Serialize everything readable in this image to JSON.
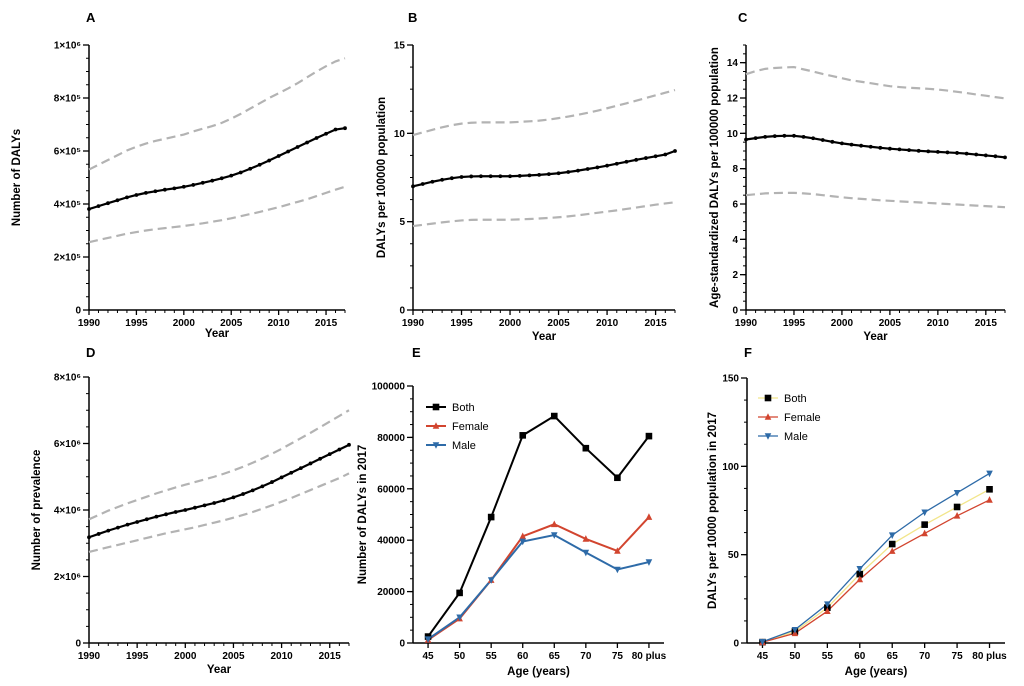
{
  "colors": {
    "axis": "#000000",
    "main_line": "#000000",
    "interval": "#b3b3b3",
    "both": "#000000",
    "female": "#d2452f",
    "male": "#2e6ba8",
    "both_f": "#f2e58a",
    "female_f": "#d2452f",
    "male_f": "#2e6ba8"
  },
  "chart_data": [
    {
      "id": "A",
      "type": "line",
      "letter": "A",
      "xlabel": "Year",
      "ylabel": "Number of DALYs",
      "xlim": [
        1990,
        2017
      ],
      "ylim": [
        0,
        1000000
      ],
      "xticks": [
        1990,
        1995,
        2000,
        2005,
        2010,
        2015
      ],
      "yticks": [
        {
          "value": 0,
          "label": "0"
        },
        {
          "value": 200000,
          "label": "2×10⁵"
        },
        {
          "value": 400000,
          "label": "4×10⁵"
        },
        {
          "value": 600000,
          "label": "6×10⁵"
        },
        {
          "value": 800000,
          "label": "8×10⁵"
        },
        {
          "value": 1000000,
          "label": "1×10⁶"
        }
      ],
      "years": [
        1990,
        1991,
        1992,
        1993,
        1994,
        1995,
        1996,
        1997,
        1998,
        1999,
        2000,
        2001,
        2002,
        2003,
        2004,
        2005,
        2006,
        2007,
        2008,
        2009,
        2010,
        2011,
        2012,
        2013,
        2014,
        2015,
        2016,
        2017
      ],
      "series": [
        {
          "name": "estimate",
          "values": [
            381000,
            392000,
            403000,
            414000,
            425000,
            434000,
            442000,
            448000,
            454000,
            459000,
            465000,
            472000,
            480000,
            488000,
            497000,
            507000,
            519000,
            533000,
            548000,
            564000,
            581000,
            598000,
            615000,
            632000,
            649000,
            665000,
            681000,
            686000
          ]
        },
        {
          "name": "upper",
          "values": [
            530000,
            548000,
            566000,
            584000,
            602000,
            616000,
            628000,
            638000,
            646000,
            654000,
            662000,
            674000,
            684000,
            694000,
            706000,
            722000,
            740000,
            760000,
            780000,
            800000,
            818000,
            836000,
            856000,
            878000,
            900000,
            920000,
            938000,
            950000
          ]
        },
        {
          "name": "lower",
          "values": [
            256000,
            264000,
            272000,
            280000,
            288000,
            294000,
            300000,
            305000,
            309000,
            313000,
            317000,
            322000,
            327000,
            333000,
            339000,
            346000,
            354000,
            362000,
            370000,
            379000,
            388000,
            398000,
            408000,
            418000,
            430000,
            442000,
            454000,
            465000
          ]
        }
      ]
    },
    {
      "id": "B",
      "type": "line",
      "letter": "B",
      "xlabel": "Year",
      "ylabel": "DALYs per 100000 population",
      "xlim": [
        1990,
        2017
      ],
      "ylim": [
        0,
        15
      ],
      "xticks": [
        1990,
        1995,
        2000,
        2005,
        2010,
        2015
      ],
      "yticks": [
        {
          "value": 0,
          "label": "0"
        },
        {
          "value": 5,
          "label": "5"
        },
        {
          "value": 10,
          "label": "10"
        },
        {
          "value": 15,
          "label": "15"
        }
      ],
      "years": [
        1990,
        1991,
        1992,
        1993,
        1994,
        1995,
        1996,
        1997,
        1998,
        1999,
        2000,
        2001,
        2002,
        2003,
        2004,
        2005,
        2006,
        2007,
        2008,
        2009,
        2010,
        2011,
        2012,
        2013,
        2014,
        2015,
        2016,
        2017
      ],
      "series": [
        {
          "name": "estimate",
          "values": [
            7.0,
            7.13,
            7.26,
            7.37,
            7.46,
            7.53,
            7.56,
            7.57,
            7.57,
            7.57,
            7.57,
            7.59,
            7.62,
            7.65,
            7.69,
            7.74,
            7.81,
            7.89,
            7.98,
            8.07,
            8.17,
            8.28,
            8.39,
            8.5,
            8.6,
            8.7,
            8.8,
            9.0
          ]
        },
        {
          "name": "upper",
          "values": [
            9.9,
            10.05,
            10.2,
            10.34,
            10.46,
            10.55,
            10.6,
            10.62,
            10.62,
            10.62,
            10.62,
            10.65,
            10.68,
            10.72,
            10.78,
            10.86,
            10.95,
            11.05,
            11.16,
            11.28,
            11.42,
            11.56,
            11.7,
            11.85,
            12.0,
            12.15,
            12.3,
            12.45
          ]
        },
        {
          "name": "lower",
          "values": [
            4.75,
            4.82,
            4.89,
            4.96,
            5.02,
            5.07,
            5.1,
            5.11,
            5.11,
            5.11,
            5.11,
            5.13,
            5.15,
            5.18,
            5.21,
            5.25,
            5.3,
            5.36,
            5.43,
            5.5,
            5.57,
            5.64,
            5.72,
            5.8,
            5.88,
            5.96,
            6.03,
            6.1
          ]
        }
      ]
    },
    {
      "id": "C",
      "type": "line",
      "letter": "C",
      "xlabel": "Year",
      "ylabel": "Age-standardized DALYs per 100000 population",
      "xlim": [
        1990,
        2017
      ],
      "ylim": [
        0,
        15
      ],
      "xticks": [
        1990,
        1995,
        2000,
        2005,
        2010,
        2015
      ],
      "yticks": [
        {
          "value": 0,
          "label": "0"
        },
        {
          "value": 2,
          "label": "2"
        },
        {
          "value": 4,
          "label": "4"
        },
        {
          "value": 6,
          "label": "6"
        },
        {
          "value": 8,
          "label": "8"
        },
        {
          "value": 10,
          "label": "10"
        },
        {
          "value": 12,
          "label": "12"
        },
        {
          "value": 14,
          "label": "14"
        }
      ],
      "years": [
        1990,
        1991,
        1992,
        1993,
        1994,
        1995,
        1996,
        1997,
        1998,
        1999,
        2000,
        2001,
        2002,
        2003,
        2004,
        2005,
        2006,
        2007,
        2008,
        2009,
        2010,
        2011,
        2012,
        2013,
        2014,
        2015,
        2016,
        2017
      ],
      "series": [
        {
          "name": "estimate",
          "values": [
            9.65,
            9.73,
            9.8,
            9.84,
            9.86,
            9.86,
            9.8,
            9.72,
            9.62,
            9.52,
            9.43,
            9.36,
            9.3,
            9.24,
            9.18,
            9.13,
            9.09,
            9.05,
            9.01,
            8.98,
            8.95,
            8.92,
            8.89,
            8.85,
            8.8,
            8.75,
            8.7,
            8.64
          ]
        },
        {
          "name": "upper",
          "values": [
            13.35,
            13.52,
            13.65,
            13.7,
            13.73,
            13.75,
            13.62,
            13.5,
            13.36,
            13.24,
            13.12,
            13.0,
            12.92,
            12.84,
            12.75,
            12.67,
            12.62,
            12.58,
            12.55,
            12.52,
            12.48,
            12.42,
            12.35,
            12.28,
            12.2,
            12.13,
            12.05,
            11.98
          ]
        },
        {
          "name": "lower",
          "values": [
            6.5,
            6.55,
            6.6,
            6.62,
            6.63,
            6.63,
            6.6,
            6.56,
            6.5,
            6.44,
            6.38,
            6.33,
            6.29,
            6.25,
            6.21,
            6.18,
            6.15,
            6.12,
            6.09,
            6.06,
            6.03,
            6.0,
            5.97,
            5.94,
            5.91,
            5.88,
            5.85,
            5.82
          ]
        }
      ]
    },
    {
      "id": "D",
      "type": "line",
      "letter": "D",
      "xlabel": "Year",
      "ylabel": "Number of prevalence",
      "xlim": [
        1990,
        2017
      ],
      "ylim": [
        0,
        8000000
      ],
      "xticks": [
        1990,
        1995,
        2000,
        2005,
        2010,
        2015
      ],
      "yticks": [
        {
          "value": 0,
          "label": "0"
        },
        {
          "value": 2000000,
          "label": "2×10⁶"
        },
        {
          "value": 4000000,
          "label": "4×10⁶"
        },
        {
          "value": 6000000,
          "label": "6×10⁶"
        },
        {
          "value": 8000000,
          "label": "8×10⁶"
        }
      ],
      "years": [
        1990,
        1991,
        1992,
        1993,
        1994,
        1995,
        1996,
        1997,
        1998,
        1999,
        2000,
        2001,
        2002,
        2003,
        2004,
        2005,
        2006,
        2007,
        2008,
        2009,
        2010,
        2011,
        2012,
        2013,
        2014,
        2015,
        2016,
        2017
      ],
      "series": [
        {
          "name": "estimate",
          "values": [
            3180000,
            3280000,
            3380000,
            3470000,
            3560000,
            3640000,
            3720000,
            3800000,
            3870000,
            3940000,
            4000000,
            4070000,
            4140000,
            4210000,
            4290000,
            4380000,
            4480000,
            4590000,
            4710000,
            4840000,
            4980000,
            5120000,
            5260000,
            5400000,
            5540000,
            5680000,
            5820000,
            5960000
          ]
        },
        {
          "name": "upper",
          "values": [
            3720000,
            3850000,
            3980000,
            4090000,
            4200000,
            4300000,
            4400000,
            4500000,
            4590000,
            4680000,
            4760000,
            4840000,
            4920000,
            5000000,
            5090000,
            5190000,
            5300000,
            5420000,
            5550000,
            5690000,
            5840000,
            6000000,
            6160000,
            6320000,
            6490000,
            6660000,
            6830000,
            7000000
          ]
        },
        {
          "name": "lower",
          "values": [
            2740000,
            2810000,
            2880000,
            2950000,
            3020000,
            3090000,
            3160000,
            3230000,
            3300000,
            3360000,
            3420000,
            3480000,
            3550000,
            3620000,
            3690000,
            3770000,
            3850000,
            3940000,
            4040000,
            4140000,
            4250000,
            4360000,
            4480000,
            4600000,
            4720000,
            4840000,
            4960000,
            5100000
          ]
        }
      ]
    },
    {
      "id": "E",
      "type": "line",
      "letter": "E",
      "xlabel": "Age (years)",
      "ylabel": "Number of DALYs in 2017",
      "categories": [
        "45",
        "50",
        "55",
        "60",
        "65",
        "70",
        "75",
        "80 plus"
      ],
      "ylim": [
        0,
        100000
      ],
      "yticks": [
        {
          "value": 0,
          "label": "0"
        },
        {
          "value": 20000,
          "label": "20000"
        },
        {
          "value": 40000,
          "label": "40000"
        },
        {
          "value": 60000,
          "label": "60000"
        },
        {
          "value": 80000,
          "label": "80000"
        },
        {
          "value": 100000,
          "label": "100000"
        }
      ],
      "series": [
        {
          "name": "Both",
          "marker": "square",
          "color_key": "both",
          "values": [
            2500,
            19500,
            49000,
            80800,
            88300,
            75800,
            64300,
            80500
          ]
        },
        {
          "name": "Female",
          "marker": "triangle-up",
          "color_key": "female",
          "values": [
            1200,
            9500,
            24500,
            41500,
            46200,
            40500,
            35800,
            49000
          ]
        },
        {
          "name": "Male",
          "marker": "triangle-down",
          "color_key": "male",
          "values": [
            1500,
            10000,
            24500,
            39500,
            42000,
            35200,
            28600,
            31500
          ]
        }
      ],
      "legend": [
        "Both",
        "Female",
        "Male"
      ]
    },
    {
      "id": "F",
      "type": "line",
      "letter": "F",
      "xlabel": "Age (years)",
      "ylabel": "DALYs per 10000 population in 2017",
      "categories": [
        "45",
        "50",
        "55",
        "60",
        "65",
        "70",
        "75",
        "80 plus"
      ],
      "ylim": [
        0,
        150
      ],
      "yticks": [
        {
          "value": 0,
          "label": "0"
        },
        {
          "value": 50,
          "label": "50"
        },
        {
          "value": 100,
          "label": "100"
        },
        {
          "value": 150,
          "label": "150"
        }
      ],
      "series": [
        {
          "name": "Both",
          "marker": "square",
          "color_key": "both_f",
          "values": [
            0.5,
            6.5,
            20,
            39,
            56,
            67,
            77,
            87
          ]
        },
        {
          "name": "Female",
          "marker": "triangle-up",
          "color_key": "female_f",
          "values": [
            0.4,
            5.5,
            18,
            36,
            52,
            62,
            72,
            81
          ]
        },
        {
          "name": "Male",
          "marker": "triangle-down",
          "color_key": "male_f",
          "values": [
            0.7,
            7.5,
            22,
            42,
            61,
            74,
            85,
            96
          ]
        }
      ],
      "legend": [
        "Both",
        "Female",
        "Male"
      ]
    }
  ]
}
